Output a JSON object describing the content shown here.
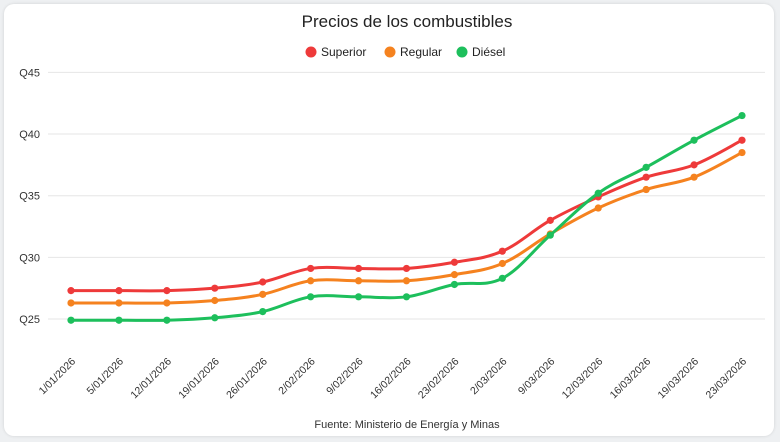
{
  "chart_data": {
    "type": "line",
    "title": "Precios de los combustibles",
    "source": "Fuente: Ministerio de Energía y Minas",
    "xlabel": "",
    "ylabel": "",
    "ylim": [
      21,
      45
    ],
    "y_ticks": [
      {
        "value": 25,
        "label": "Q25"
      },
      {
        "value": 30,
        "label": "Q30"
      },
      {
        "value": 35,
        "label": "Q35"
      },
      {
        "value": 40,
        "label": "Q40"
      },
      {
        "value": 45,
        "label": "Q45"
      }
    ],
    "categories": [
      "1/01/2026",
      "5/01/2026",
      "12/01/2026",
      "19/01/2026",
      "26/01/2026",
      "2/02/2026",
      "9/02/2026",
      "16/02/2026",
      "23/02/2026",
      "2/03/2026",
      "9/03/2026",
      "12/03/2026",
      "16/03/2026",
      "19/03/2026",
      "23/03/2026"
    ],
    "legend_position": "top-center",
    "series": [
      {
        "name": "Superior",
        "color": "#ee3a3a",
        "values": [
          27.3,
          27.3,
          27.3,
          27.5,
          28.0,
          29.1,
          29.1,
          29.1,
          29.6,
          30.5,
          33.0,
          34.9,
          36.5,
          37.5,
          39.5
        ]
      },
      {
        "name": "Regular",
        "color": "#f5821f",
        "values": [
          26.3,
          26.3,
          26.3,
          26.5,
          27.0,
          28.1,
          28.1,
          28.1,
          28.6,
          29.5,
          31.9,
          34.0,
          35.5,
          36.5,
          38.5
        ]
      },
      {
        "name": "Diésel",
        "color": "#1dbf5c",
        "values": [
          24.9,
          24.9,
          24.9,
          25.1,
          25.6,
          26.8,
          26.8,
          26.8,
          27.8,
          28.3,
          31.8,
          35.2,
          37.3,
          39.5,
          41.5
        ]
      }
    ]
  }
}
